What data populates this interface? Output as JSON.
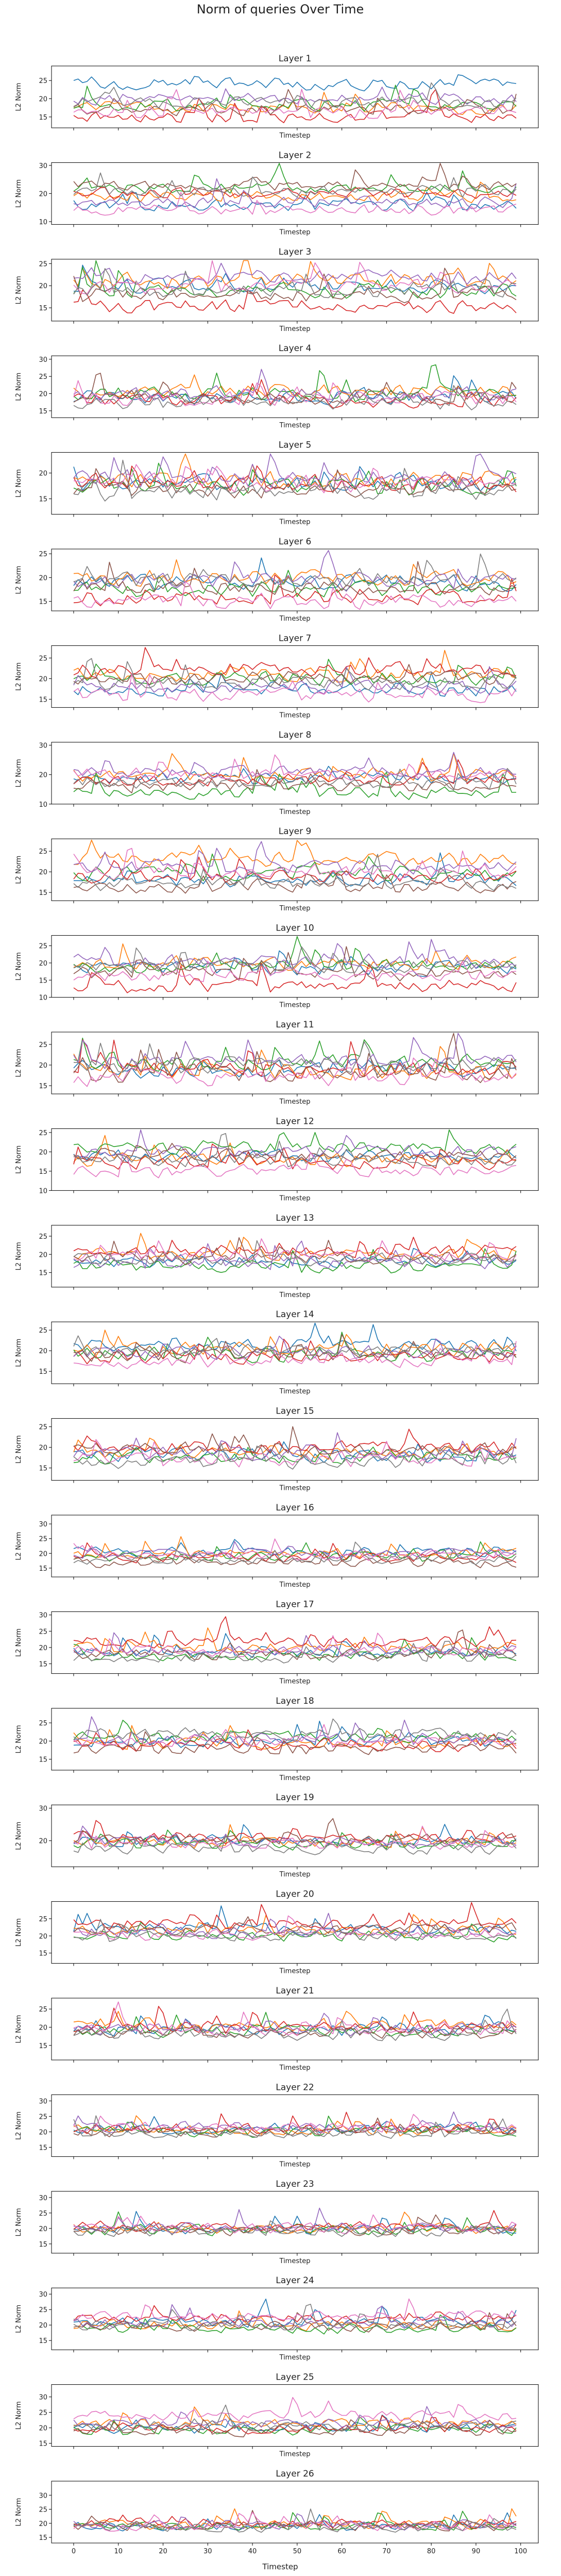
{
  "figure": {
    "title": "Norm of queries Over Time",
    "xlabel": "Timestep",
    "ylabel": "L2 Norm"
  },
  "chart_data": {
    "type": "line",
    "x_range": [
      0,
      99
    ],
    "x_ticks": [
      0,
      10,
      20,
      30,
      40,
      50,
      60,
      70,
      80,
      90,
      100
    ],
    "series_colors": [
      "#1f77b4",
      "#ff7f0e",
      "#2ca02c",
      "#d62728",
      "#9467bd",
      "#8c564b",
      "#e377c2",
      "#7f7f7f"
    ],
    "layers": [
      {
        "title": "Layer 1",
        "ylim": [
          12,
          29
        ],
        "yticks": [
          15,
          20,
          25
        ],
        "means": [
          24.0,
          17.5,
          18.5,
          15.0,
          20.0,
          17.0,
          16.5,
          19.0
        ],
        "amplitude": 2.0
      },
      {
        "title": "Layer 2",
        "ylim": [
          9,
          31
        ],
        "yticks": [
          10,
          20,
          30
        ],
        "means": [
          16.0,
          19.0,
          22.0,
          20.0,
          17.0,
          23.0,
          14.0,
          21.0
        ],
        "amplitude": 2.5
      },
      {
        "title": "Layer 3",
        "ylim": [
          12,
          26
        ],
        "yticks": [
          15,
          20,
          25
        ],
        "means": [
          20.0,
          21.0,
          19.0,
          15.5,
          22.0,
          18.0,
          20.0,
          19.0
        ],
        "amplitude": 2.0
      },
      {
        "title": "Layer 4",
        "ylim": [
          13,
          31
        ],
        "yticks": [
          15,
          20,
          25,
          30
        ],
        "means": [
          19.0,
          21.0,
          20.0,
          18.0,
          20.0,
          19.0,
          18.5,
          17.5
        ],
        "amplitude": 2.5
      },
      {
        "title": "Layer 5",
        "ylim": [
          12,
          24
        ],
        "yticks": [
          15,
          20
        ],
        "means": [
          18.0,
          18.5,
          17.5,
          18.0,
          19.0,
          17.0,
          18.0,
          16.5
        ],
        "amplitude": 2.0
      },
      {
        "title": "Layer 6",
        "ylim": [
          13,
          26
        ],
        "yticks": [
          15,
          20,
          25
        ],
        "means": [
          19.0,
          20.0,
          17.5,
          16.0,
          19.0,
          18.0,
          15.0,
          19.5
        ],
        "amplitude": 2.0
      },
      {
        "title": "Layer 7",
        "ylim": [
          13,
          28
        ],
        "yticks": [
          15,
          20,
          25
        ],
        "means": [
          17.5,
          21.0,
          20.0,
          22.0,
          18.0,
          20.0,
          16.0,
          19.0
        ],
        "amplitude": 2.0
      },
      {
        "title": "Layer 8",
        "ylim": [
          10,
          31
        ],
        "yticks": [
          10,
          20,
          30
        ],
        "means": [
          19.0,
          20.0,
          14.0,
          18.0,
          21.0,
          16.0,
          20.0,
          17.0
        ],
        "amplitude": 2.5
      },
      {
        "title": "Layer 9",
        "ylim": [
          13,
          28
        ],
        "yticks": [
          15,
          20,
          25
        ],
        "means": [
          18.0,
          23.0,
          19.5,
          19.0,
          21.0,
          16.5,
          20.0,
          17.0
        ],
        "amplitude": 2.0
      },
      {
        "title": "Layer 10",
        "ylim": [
          10,
          28
        ],
        "yticks": [
          10,
          15,
          20,
          25
        ],
        "means": [
          18.5,
          20.0,
          19.0,
          13.5,
          20.5,
          17.0,
          16.5,
          19.0
        ],
        "amplitude": 2.5
      },
      {
        "title": "Layer 11",
        "ylim": [
          13,
          28
        ],
        "yticks": [
          15,
          20,
          25
        ],
        "means": [
          19.0,
          18.5,
          20.5,
          19.0,
          21.0,
          18.0,
          17.0,
          20.0
        ],
        "amplitude": 2.5
      },
      {
        "title": "Layer 12",
        "ylim": [
          10,
          26
        ],
        "yticks": [
          10,
          15,
          20,
          25
        ],
        "means": [
          19.0,
          18.0,
          21.0,
          17.0,
          20.0,
          19.0,
          15.0,
          18.0
        ],
        "amplitude": 2.0
      },
      {
        "title": "Layer 13",
        "ylim": [
          11,
          28
        ],
        "yticks": [
          15,
          20,
          25
        ],
        "means": [
          18.0,
          20.0,
          16.5,
          21.0,
          17.5,
          19.0,
          19.5,
          18.5
        ],
        "amplitude": 2.0
      },
      {
        "title": "Layer 14",
        "ylim": [
          12,
          27
        ],
        "yticks": [
          15,
          20,
          25
        ],
        "means": [
          21.0,
          20.5,
          19.0,
          18.5,
          19.5,
          19.0,
          17.5,
          20.0
        ],
        "amplitude": 2.0
      },
      {
        "title": "Layer 15",
        "ylim": [
          12,
          27
        ],
        "yticks": [
          15,
          20,
          25
        ],
        "means": [
          18.0,
          19.0,
          17.5,
          20.0,
          18.5,
          19.5,
          17.0,
          16.5
        ],
        "amplitude": 2.0
      },
      {
        "title": "Layer 16",
        "ylim": [
          12,
          33
        ],
        "yticks": [
          15,
          20,
          25,
          30
        ],
        "means": [
          20.5,
          20.0,
          19.0,
          18.5,
          20.0,
          17.0,
          19.0,
          18.0
        ],
        "amplitude": 2.0
      },
      {
        "title": "Layer 17",
        "ylim": [
          12,
          31
        ],
        "yticks": [
          15,
          20,
          25,
          30
        ],
        "means": [
          18.5,
          20.0,
          17.5,
          21.5,
          19.0,
          18.0,
          19.0,
          17.0
        ],
        "amplitude": 2.0
      },
      {
        "title": "Layer 18",
        "ylim": [
          12,
          29
        ],
        "yticks": [
          15,
          20,
          25
        ],
        "means": [
          20.0,
          19.5,
          21.0,
          19.0,
          20.5,
          18.0,
          20.0,
          22.0
        ],
        "amplitude": 2.0
      },
      {
        "title": "Layer 19",
        "ylim": [
          12,
          31
        ],
        "yticks": [
          20,
          30
        ],
        "means": [
          20.0,
          19.5,
          19.0,
          21.0,
          19.5,
          20.5,
          19.0,
          17.5
        ],
        "amplitude": 2.0
      },
      {
        "title": "Layer 20",
        "ylim": [
          12,
          30
        ],
        "yticks": [
          15,
          20,
          25
        ],
        "means": [
          22.0,
          21.5,
          20.0,
          23.5,
          21.0,
          22.0,
          20.5,
          20.0
        ],
        "amplitude": 2.0
      },
      {
        "title": "Layer 21",
        "ylim": [
          11,
          28
        ],
        "yticks": [
          15,
          20,
          25
        ],
        "means": [
          19.5,
          20.5,
          19.0,
          20.0,
          19.5,
          18.5,
          19.0,
          18.0
        ],
        "amplitude": 2.0
      },
      {
        "title": "Layer 22",
        "ylim": [
          12,
          32
        ],
        "yticks": [
          15,
          20,
          25,
          30
        ],
        "means": [
          21.0,
          20.5,
          20.0,
          21.0,
          21.5,
          20.0,
          21.5,
          19.5
        ],
        "amplitude": 2.0
      },
      {
        "title": "Layer 23",
        "ylim": [
          12,
          32
        ],
        "yticks": [
          15,
          20,
          25,
          30
        ],
        "means": [
          20.0,
          20.0,
          19.5,
          20.5,
          20.0,
          19.5,
          20.0,
          19.0
        ],
        "amplitude": 2.0
      },
      {
        "title": "Layer 24",
        "ylim": [
          12,
          32
        ],
        "yticks": [
          15,
          20,
          25,
          30
        ],
        "means": [
          21.0,
          20.0,
          19.0,
          22.0,
          20.5,
          19.5,
          23.0,
          20.0
        ],
        "amplitude": 2.0
      },
      {
        "title": "Layer 25",
        "ylim": [
          14,
          34
        ],
        "yticks": [
          15,
          20,
          25,
          30
        ],
        "means": [
          20.0,
          21.5,
          19.5,
          20.0,
          21.5,
          19.0,
          24.0,
          20.5
        ],
        "amplitude": 2.0
      },
      {
        "title": "Layer 26",
        "ylim": [
          13,
          35
        ],
        "yticks": [
          15,
          20,
          25,
          30
        ],
        "means": [
          19.0,
          19.5,
          19.0,
          20.0,
          19.5,
          19.0,
          19.0,
          18.5
        ],
        "amplitude": 2.0
      }
    ]
  }
}
